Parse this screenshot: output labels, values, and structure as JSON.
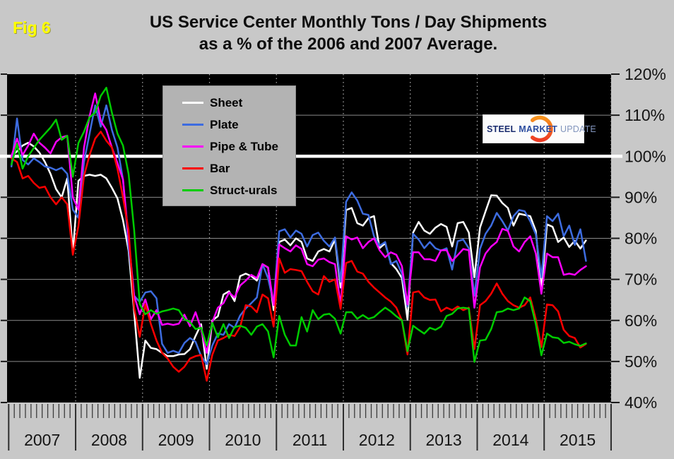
{
  "page": {
    "fig_label": "Fig 6",
    "title_line1": "US Service Center Monthly Tons / Day Shipments",
    "title_line2": "as a % of the 2006 and 2007 Average."
  },
  "legend": {
    "items": [
      {
        "label": "Sheet",
        "color": "#ffffff"
      },
      {
        "label": "Plate",
        "color": "#3d6ce0"
      },
      {
        "label": "Pipe & Tube",
        "color": "#ff00ff"
      },
      {
        "label": "Bar",
        "color": "#ff0000"
      },
      {
        "label": "Struct-urals",
        "color": "#00cc00"
      }
    ]
  },
  "logo": {
    "word1": "STEEL",
    "word2": "MARKET",
    "word3": "UPDATE",
    "accent_color": "#f05a22"
  },
  "chart_data": {
    "type": "line",
    "title": "US Service Center Monthly Tons / Day Shipments as a % of the 2006 and 2007 Average.",
    "x_unit": "month",
    "x_start": "2007-01",
    "x_end": "2015-08",
    "year_labels": [
      "2007",
      "2008",
      "2009",
      "2010",
      "2011",
      "2012",
      "2013",
      "2014",
      "2015"
    ],
    "y_tick_labels": [
      "120%",
      "110%",
      "100%",
      "90%",
      "80%",
      "70%",
      "60%",
      "50%",
      "40%"
    ],
    "ylim": [
      40,
      120
    ],
    "y_step": 10,
    "reference_line": 100,
    "grid": true,
    "plot_bg": "#000000",
    "legend_position": "upper-left",
    "series": [
      {
        "name": "Sheet",
        "color": "#ffffff",
        "values": [
          100,
          101.2,
          102.6,
          103.3,
          102.4,
          100.9,
          98.6,
          95.7,
          92,
          90,
          94.6,
          76.5,
          94,
          95.2,
          95.5,
          95.2,
          95.5,
          94.6,
          92.3,
          89.7,
          84.4,
          77,
          62,
          46,
          55.1,
          53.3,
          53,
          52.1,
          51.3,
          51.3,
          51.7,
          51.8,
          53,
          56.2,
          59.1,
          48.2,
          60,
          61,
          66.3,
          67.1,
          64.7,
          70.8,
          71.4,
          70.8,
          69.7,
          73.7,
          72.9,
          62.5,
          79.1,
          79.7,
          78.3,
          80,
          79.1,
          75.1,
          74.5,
          76.8,
          77.4,
          76.8,
          79.7,
          68,
          86.9,
          87.4,
          83.7,
          83.1,
          84.9,
          85.4,
          77.6,
          78.8,
          74,
          72.5,
          70.3,
          60.2,
          81.4,
          84,
          81.9,
          81.1,
          82.6,
          83.5,
          82.8,
          78,
          83.7,
          84,
          81.4,
          70.5,
          82.6,
          86.6,
          90.5,
          90.4,
          88.6,
          87.4,
          83.1,
          86,
          85.7,
          85.4,
          81.8,
          67.5,
          83.4,
          82.8,
          79.1,
          80.2,
          77.9,
          79.4,
          77.5,
          79.5
        ]
      },
      {
        "name": "Plate",
        "color": "#3d6ce0",
        "values": [
          97.5,
          109.2,
          99.1,
          98,
          99.5,
          98.6,
          97.5,
          97.2,
          96.6,
          97.2,
          95.7,
          87,
          85,
          98.6,
          105.5,
          112.4,
          107.2,
          112.4,
          106.4,
          102.1,
          94.3,
          78,
          66,
          64.5,
          66.8,
          67.1,
          65.4,
          54.3,
          52.1,
          52.6,
          52.1,
          54.5,
          55.7,
          54.8,
          51.3,
          49.3,
          53.9,
          56.8,
          56.5,
          59.1,
          58.2,
          61.2,
          62.9,
          64.2,
          65.6,
          73.7,
          70.3,
          64.2,
          81.7,
          82.2,
          80.2,
          81.9,
          81.1,
          78,
          80.8,
          81.4,
          79.4,
          78,
          80.2,
          69.4,
          88.9,
          91.2,
          89.2,
          86,
          85.7,
          80.5,
          78.2,
          79.1,
          73.7,
          74.5,
          71.4,
          63.4,
          81.1,
          79.7,
          77.6,
          79.1,
          77.6,
          77,
          77.6,
          72.4,
          79.3,
          79.7,
          77.6,
          66,
          77.4,
          81.1,
          83.1,
          86.2,
          84.2,
          81.9,
          85.4,
          86.9,
          86.6,
          84.2,
          81,
          70.5,
          85.4,
          84.2,
          86,
          80.5,
          83.1,
          78.4,
          82.2,
          74.5
        ]
      },
      {
        "name": "Pipe & Tube",
        "color": "#ff00ff",
        "values": [
          100,
          104.3,
          100.3,
          102.6,
          105.5,
          103.3,
          102.1,
          100.7,
          103.5,
          104.6,
          105,
          90,
          87,
          102.1,
          109.8,
          115.3,
          108.6,
          106.4,
          102.1,
          98.3,
          94.3,
          80,
          66,
          61.5,
          65.1,
          60.3,
          62.5,
          58.9,
          59.2,
          58.9,
          59.2,
          61.4,
          58.6,
          62,
          57.9,
          52.1,
          59.6,
          63.1,
          64.2,
          66.8,
          65.6,
          68.5,
          69.7,
          71.1,
          70.3,
          73.7,
          72.9,
          63.7,
          78.5,
          77.6,
          76.8,
          78.3,
          77.4,
          73.7,
          73.2,
          74.8,
          75.1,
          74.2,
          73.7,
          63.7,
          80.5,
          79.7,
          80.2,
          77.6,
          79.1,
          80,
          77.1,
          75.4,
          76.6,
          76,
          73.2,
          63.9,
          76.6,
          76.6,
          74.9,
          74.9,
          74.5,
          77.1,
          77.1,
          74.5,
          75.9,
          77.4,
          77.1,
          63.1,
          72.9,
          76.3,
          78,
          79.1,
          82.3,
          81.8,
          78,
          76.8,
          79.1,
          80.5,
          76.3,
          66.5,
          76.3,
          75.4,
          75.4,
          71.1,
          71.4,
          71.1,
          72.3,
          73.2
        ]
      },
      {
        "name": "Bar",
        "color": "#ff0000",
        "values": [
          99.5,
          98.6,
          94.6,
          95.2,
          93.5,
          92.3,
          92.6,
          90,
          88.3,
          90,
          88.3,
          76,
          83,
          95.2,
          100.3,
          104.3,
          106,
          103.8,
          102.1,
          96.9,
          90,
          82,
          63,
          56,
          63.9,
          59.1,
          55.1,
          52.1,
          50.7,
          48.7,
          47.5,
          48.7,
          50.7,
          51.3,
          51.6,
          45.3,
          51.6,
          55.1,
          55.7,
          56.5,
          56.2,
          58.4,
          63.7,
          63.4,
          62,
          66.3,
          65.4,
          58.5,
          75.1,
          71.6,
          72.5,
          72.3,
          72,
          69.4,
          67.1,
          66.3,
          70.8,
          69.4,
          70,
          62.8,
          74,
          74.5,
          71.9,
          71.4,
          69.4,
          68,
          66.8,
          65.6,
          64.6,
          63.1,
          60,
          51.7,
          66.8,
          67.1,
          65.6,
          65,
          65.1,
          62.2,
          63.1,
          62.5,
          63.4,
          62.5,
          63.1,
          53,
          63.7,
          64.7,
          66.5,
          69,
          66.5,
          64.7,
          63.7,
          63.1,
          63.7,
          65.6,
          60.3,
          53.5,
          63.9,
          63.7,
          62.2,
          57.7,
          56.2,
          55.7,
          53.4,
          54.3
        ]
      },
      {
        "name": "Struct-urals",
        "color": "#00cc00",
        "values": [
          98,
          103,
          97,
          100,
          102,
          104,
          105.5,
          107,
          108.9,
          104,
          105,
          95,
          103.2,
          106,
          109.5,
          110.6,
          114.7,
          116.7,
          110.6,
          105.5,
          102.6,
          95.7,
          82,
          64,
          61.5,
          62.5,
          61.6,
          62.2,
          62.5,
          62.9,
          62.5,
          60.3,
          59.6,
          57.9,
          58.2,
          53.9,
          59.4,
          55.9,
          59.1,
          55.7,
          58.4,
          58.7,
          58.2,
          56.5,
          58.5,
          59.1,
          57.3,
          51,
          61.1,
          56.5,
          53.9,
          53.9,
          60.8,
          57.3,
          62.5,
          60.3,
          61.4,
          61.6,
          60.4,
          56.8,
          62,
          62,
          60.4,
          61.3,
          60.4,
          60.8,
          62,
          63.1,
          62.2,
          61,
          60,
          52.5,
          58.7,
          57.7,
          56.8,
          58.2,
          57.7,
          58.5,
          61.1,
          61.6,
          62.9,
          63.1,
          62.9,
          49.9,
          55.1,
          55.3,
          57.9,
          62,
          62.2,
          62.9,
          62.5,
          62.9,
          65.6,
          64.7,
          59.1,
          51.5,
          56.8,
          55.9,
          55.7,
          54.5,
          54.8,
          54.2,
          53.8,
          54.4
        ]
      }
    ]
  }
}
